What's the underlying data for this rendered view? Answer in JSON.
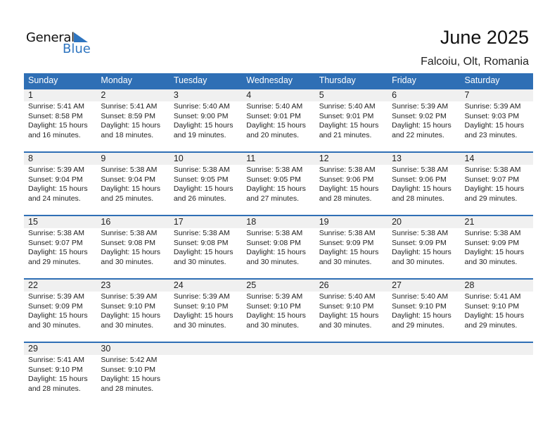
{
  "logo": {
    "general": "General",
    "blue": "Blue"
  },
  "title": "June 2025",
  "location": "Falcoiu, Olt, Romania",
  "colors": {
    "accent": "#2f6fb5",
    "band": "#f0f0f0"
  },
  "weekdays": [
    "Sunday",
    "Monday",
    "Tuesday",
    "Wednesday",
    "Thursday",
    "Friday",
    "Saturday"
  ],
  "days": [
    {
      "day": "1",
      "sunrise": "Sunrise: 5:41 AM",
      "sunset": "Sunset: 8:58 PM",
      "daylight1": "Daylight: 15 hours",
      "daylight2": "and 16 minutes."
    },
    {
      "day": "2",
      "sunrise": "Sunrise: 5:41 AM",
      "sunset": "Sunset: 8:59 PM",
      "daylight1": "Daylight: 15 hours",
      "daylight2": "and 18 minutes."
    },
    {
      "day": "3",
      "sunrise": "Sunrise: 5:40 AM",
      "sunset": "Sunset: 9:00 PM",
      "daylight1": "Daylight: 15 hours",
      "daylight2": "and 19 minutes."
    },
    {
      "day": "4",
      "sunrise": "Sunrise: 5:40 AM",
      "sunset": "Sunset: 9:01 PM",
      "daylight1": "Daylight: 15 hours",
      "daylight2": "and 20 minutes."
    },
    {
      "day": "5",
      "sunrise": "Sunrise: 5:40 AM",
      "sunset": "Sunset: 9:01 PM",
      "daylight1": "Daylight: 15 hours",
      "daylight2": "and 21 minutes."
    },
    {
      "day": "6",
      "sunrise": "Sunrise: 5:39 AM",
      "sunset": "Sunset: 9:02 PM",
      "daylight1": "Daylight: 15 hours",
      "daylight2": "and 22 minutes."
    },
    {
      "day": "7",
      "sunrise": "Sunrise: 5:39 AM",
      "sunset": "Sunset: 9:03 PM",
      "daylight1": "Daylight: 15 hours",
      "daylight2": "and 23 minutes."
    },
    {
      "day": "8",
      "sunrise": "Sunrise: 5:39 AM",
      "sunset": "Sunset: 9:04 PM",
      "daylight1": "Daylight: 15 hours",
      "daylight2": "and 24 minutes."
    },
    {
      "day": "9",
      "sunrise": "Sunrise: 5:38 AM",
      "sunset": "Sunset: 9:04 PM",
      "daylight1": "Daylight: 15 hours",
      "daylight2": "and 25 minutes."
    },
    {
      "day": "10",
      "sunrise": "Sunrise: 5:38 AM",
      "sunset": "Sunset: 9:05 PM",
      "daylight1": "Daylight: 15 hours",
      "daylight2": "and 26 minutes."
    },
    {
      "day": "11",
      "sunrise": "Sunrise: 5:38 AM",
      "sunset": "Sunset: 9:05 PM",
      "daylight1": "Daylight: 15 hours",
      "daylight2": "and 27 minutes."
    },
    {
      "day": "12",
      "sunrise": "Sunrise: 5:38 AM",
      "sunset": "Sunset: 9:06 PM",
      "daylight1": "Daylight: 15 hours",
      "daylight2": "and 28 minutes."
    },
    {
      "day": "13",
      "sunrise": "Sunrise: 5:38 AM",
      "sunset": "Sunset: 9:06 PM",
      "daylight1": "Daylight: 15 hours",
      "daylight2": "and 28 minutes."
    },
    {
      "day": "14",
      "sunrise": "Sunrise: 5:38 AM",
      "sunset": "Sunset: 9:07 PM",
      "daylight1": "Daylight: 15 hours",
      "daylight2": "and 29 minutes."
    },
    {
      "day": "15",
      "sunrise": "Sunrise: 5:38 AM",
      "sunset": "Sunset: 9:07 PM",
      "daylight1": "Daylight: 15 hours",
      "daylight2": "and 29 minutes."
    },
    {
      "day": "16",
      "sunrise": "Sunrise: 5:38 AM",
      "sunset": "Sunset: 9:08 PM",
      "daylight1": "Daylight: 15 hours",
      "daylight2": "and 30 minutes."
    },
    {
      "day": "17",
      "sunrise": "Sunrise: 5:38 AM",
      "sunset": "Sunset: 9:08 PM",
      "daylight1": "Daylight: 15 hours",
      "daylight2": "and 30 minutes."
    },
    {
      "day": "18",
      "sunrise": "Sunrise: 5:38 AM",
      "sunset": "Sunset: 9:08 PM",
      "daylight1": "Daylight: 15 hours",
      "daylight2": "and 30 minutes."
    },
    {
      "day": "19",
      "sunrise": "Sunrise: 5:38 AM",
      "sunset": "Sunset: 9:09 PM",
      "daylight1": "Daylight: 15 hours",
      "daylight2": "and 30 minutes."
    },
    {
      "day": "20",
      "sunrise": "Sunrise: 5:38 AM",
      "sunset": "Sunset: 9:09 PM",
      "daylight1": "Daylight: 15 hours",
      "daylight2": "and 30 minutes."
    },
    {
      "day": "21",
      "sunrise": "Sunrise: 5:38 AM",
      "sunset": "Sunset: 9:09 PM",
      "daylight1": "Daylight: 15 hours",
      "daylight2": "and 30 minutes."
    },
    {
      "day": "22",
      "sunrise": "Sunrise: 5:39 AM",
      "sunset": "Sunset: 9:09 PM",
      "daylight1": "Daylight: 15 hours",
      "daylight2": "and 30 minutes."
    },
    {
      "day": "23",
      "sunrise": "Sunrise: 5:39 AM",
      "sunset": "Sunset: 9:10 PM",
      "daylight1": "Daylight: 15 hours",
      "daylight2": "and 30 minutes."
    },
    {
      "day": "24",
      "sunrise": "Sunrise: 5:39 AM",
      "sunset": "Sunset: 9:10 PM",
      "daylight1": "Daylight: 15 hours",
      "daylight2": "and 30 minutes."
    },
    {
      "day": "25",
      "sunrise": "Sunrise: 5:39 AM",
      "sunset": "Sunset: 9:10 PM",
      "daylight1": "Daylight: 15 hours",
      "daylight2": "and 30 minutes."
    },
    {
      "day": "26",
      "sunrise": "Sunrise: 5:40 AM",
      "sunset": "Sunset: 9:10 PM",
      "daylight1": "Daylight: 15 hours",
      "daylight2": "and 30 minutes."
    },
    {
      "day": "27",
      "sunrise": "Sunrise: 5:40 AM",
      "sunset": "Sunset: 9:10 PM",
      "daylight1": "Daylight: 15 hours",
      "daylight2": "and 29 minutes."
    },
    {
      "day": "28",
      "sunrise": "Sunrise: 5:41 AM",
      "sunset": "Sunset: 9:10 PM",
      "daylight1": "Daylight: 15 hours",
      "daylight2": "and 29 minutes."
    },
    {
      "day": "29",
      "sunrise": "Sunrise: 5:41 AM",
      "sunset": "Sunset: 9:10 PM",
      "daylight1": "Daylight: 15 hours",
      "daylight2": "and 28 minutes."
    },
    {
      "day": "30",
      "sunrise": "Sunrise: 5:42 AM",
      "sunset": "Sunset: 9:10 PM",
      "daylight1": "Daylight: 15 hours",
      "daylight2": "and 28 minutes."
    }
  ]
}
